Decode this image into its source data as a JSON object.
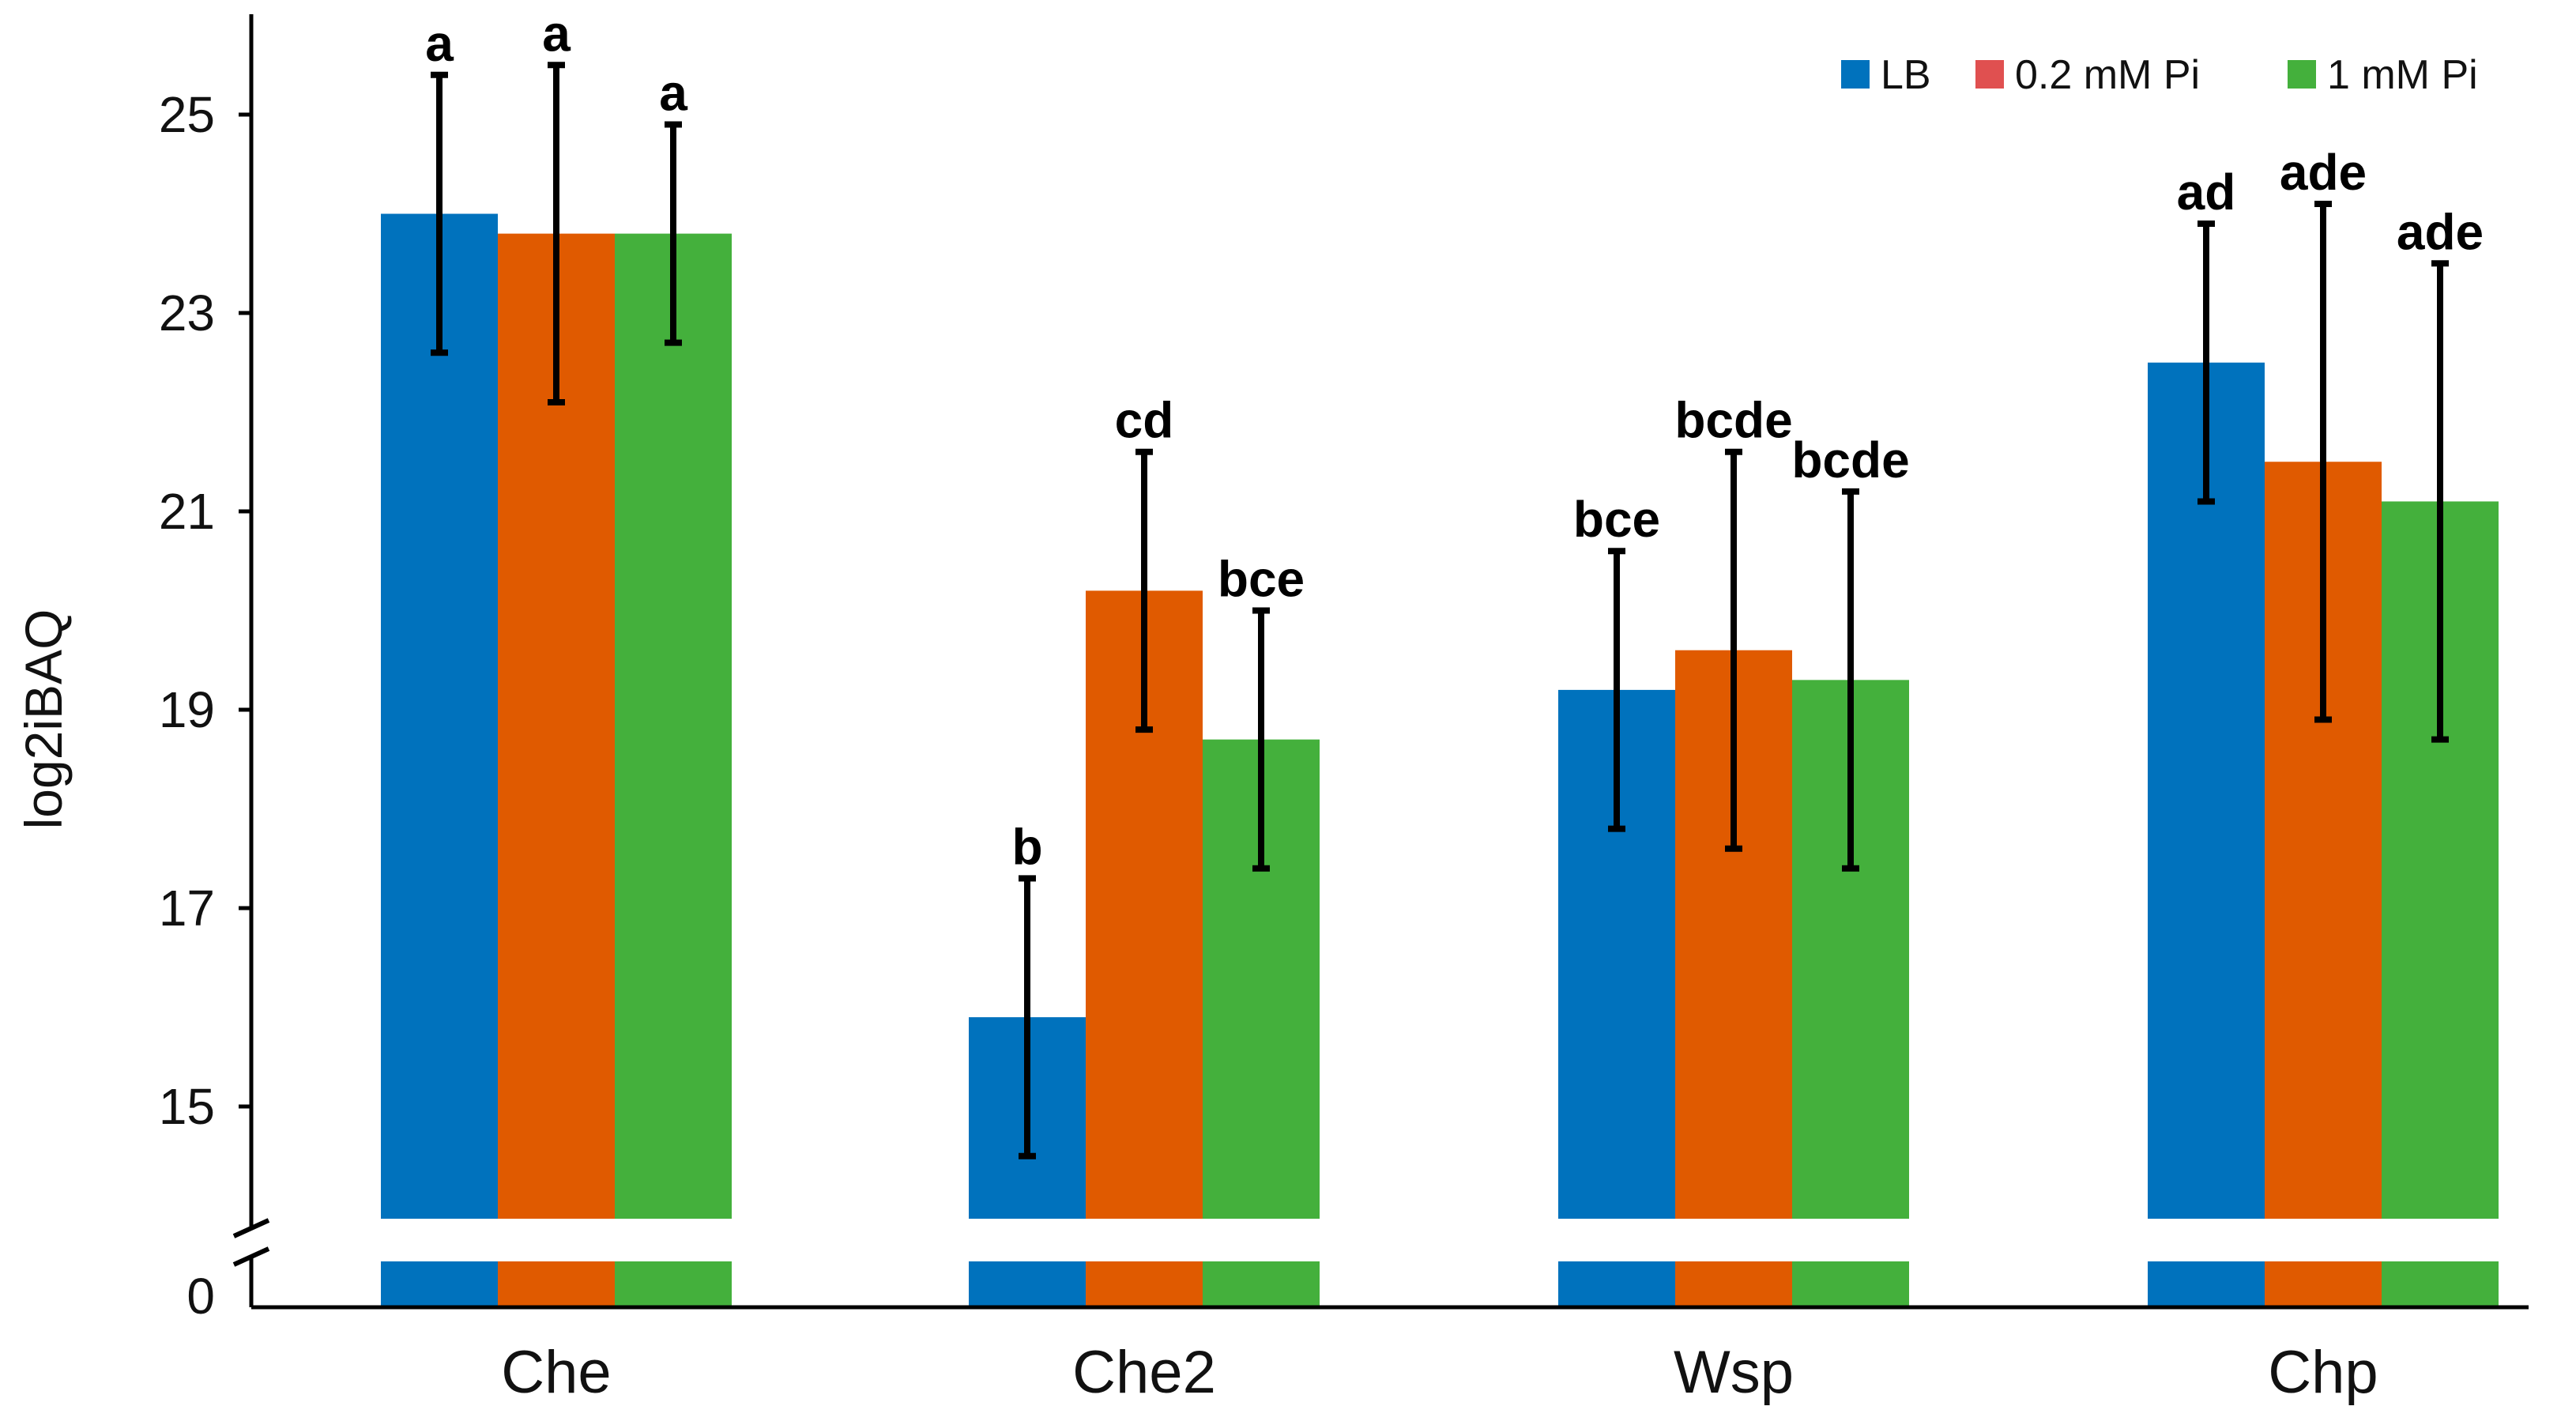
{
  "chart_data": {
    "type": "bar",
    "title": "",
    "xlabel": "",
    "ylabel": "log2iBAQ",
    "ylim": [
      14,
      26
    ],
    "y_ticks": [
      15,
      17,
      19,
      21,
      23,
      25
    ],
    "y_break_label": "0",
    "grid": false,
    "legend_position": "top-right",
    "categories": [
      "Che",
      "Che2",
      "Wsp",
      "Chp"
    ],
    "series": [
      {
        "name": "LB",
        "color": "#0072BD",
        "values": [
          24.0,
          15.9,
          19.2,
          22.5
        ],
        "error_low": [
          22.6,
          14.5,
          17.8,
          21.1
        ],
        "error_high": [
          25.4,
          17.3,
          20.6,
          23.9
        ],
        "significance": [
          "a",
          "b",
          "bce",
          "ad"
        ]
      },
      {
        "name": "0.2 mM Pi",
        "color": "#E05A00",
        "legend_color": "#E05050",
        "values": [
          23.8,
          20.2,
          19.6,
          21.5
        ],
        "error_low": [
          22.1,
          18.8,
          17.6,
          18.9
        ],
        "error_high": [
          25.5,
          21.6,
          21.6,
          24.1
        ],
        "significance": [
          "a",
          "cd",
          "bcde",
          "ade"
        ]
      },
      {
        "name": "1 mM Pi",
        "color": "#44B03C",
        "values": [
          23.8,
          18.7,
          19.3,
          21.1
        ],
        "error_low": [
          22.7,
          17.4,
          17.4,
          18.7
        ],
        "error_high": [
          24.9,
          20.0,
          21.2,
          23.5
        ],
        "significance": [
          "a",
          "bce",
          "bcde",
          "ade"
        ]
      }
    ]
  }
}
